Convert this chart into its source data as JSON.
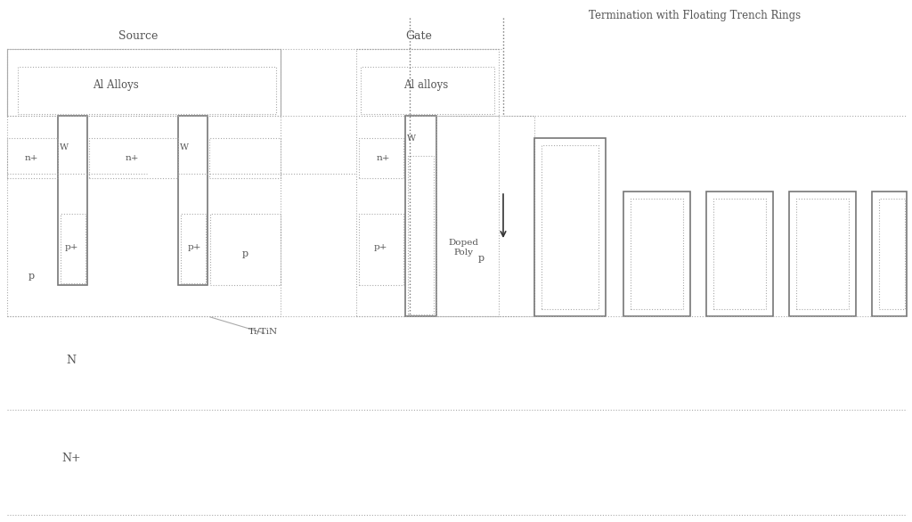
{
  "title": "Termination with Floating Trench Rings",
  "bg_color": "#ffffff",
  "lc": "#777777",
  "dlc": "#aaaaaa",
  "figsize": [
    10.24,
    5.86
  ],
  "dpi": 100,
  "labels": {
    "source": "Source",
    "al_alloys_src": "Al Alloys",
    "gate": "Gate",
    "al_alloys_gate": "Al alloys",
    "n_plus_1": "n+",
    "n_plus_2": "n+",
    "n_plus_3": "n+",
    "p_plus_1": "p+",
    "p_plus_2": "p+",
    "p_plus_3": "p+",
    "p_left": "p",
    "p_mid": "p",
    "p_right": "p",
    "doped_poly": "Doped\nPoly",
    "w1": "W",
    "w2": "W",
    "w3": "W",
    "titin": "Ti/TiN",
    "N": "N",
    "Nplus": "N+"
  }
}
